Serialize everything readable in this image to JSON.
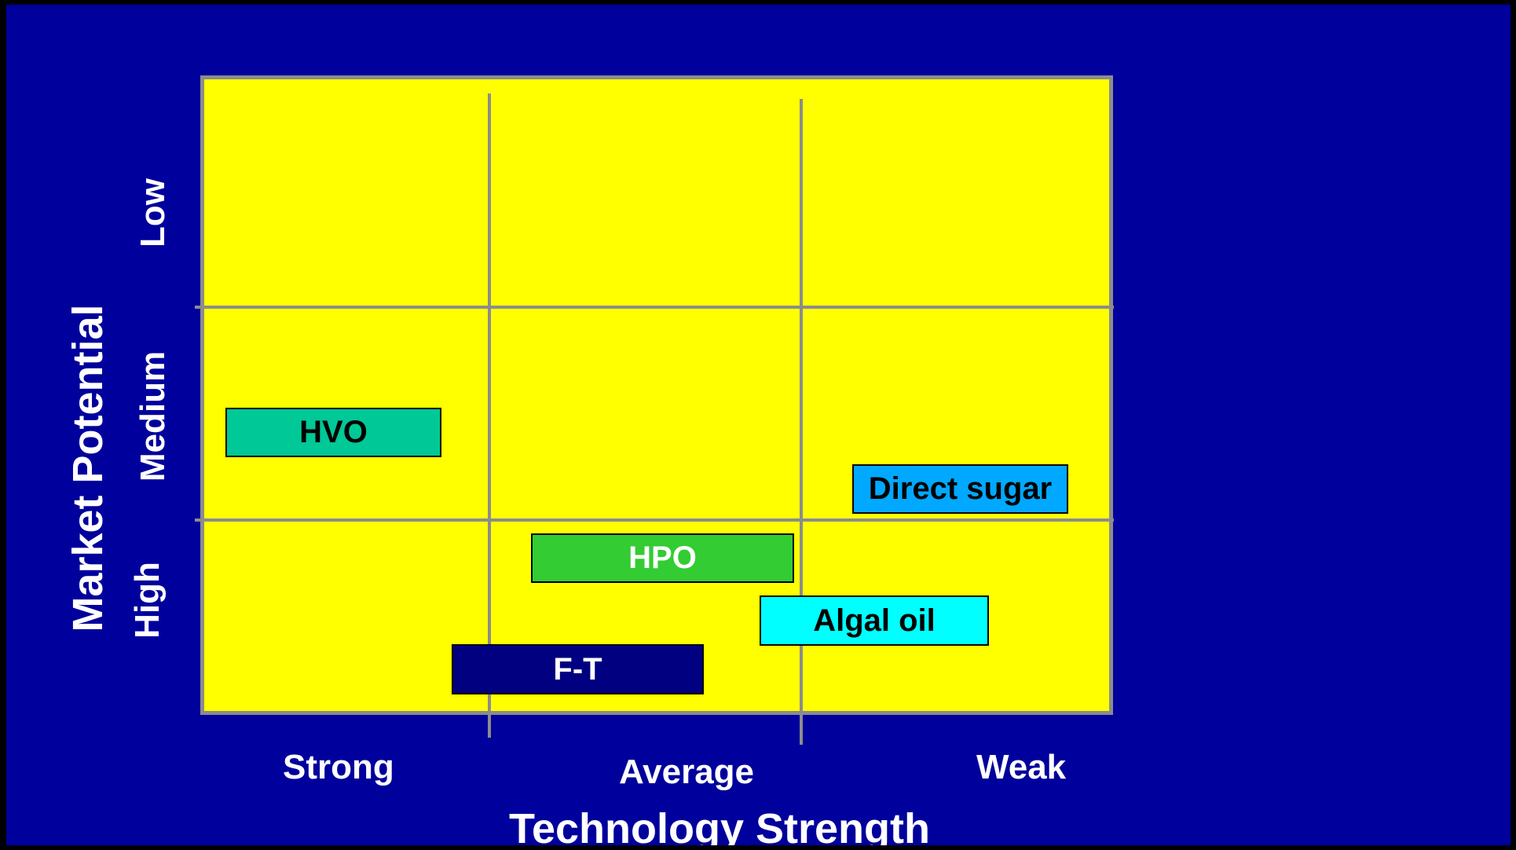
{
  "colors": {
    "slide_background": "#00009C",
    "grid_background": "#FFFF00",
    "grid_lines": "#8C8C8C",
    "label_text": "#FFFFFF"
  },
  "axes": {
    "x_title": "Technology Strength",
    "y_title": "Market Potential",
    "x_categories": [
      "Strong",
      "Average",
      "Weak"
    ],
    "y_categories": [
      "Low",
      "Medium",
      "High"
    ]
  },
  "items": [
    {
      "label": "HVO",
      "fill": "#00C896",
      "text_color": "#000000",
      "technology": "Strong",
      "market_potential": "Medium"
    },
    {
      "label": "Direct sugar",
      "fill": "#00A8FF",
      "text_color": "#000000",
      "technology": "Weak",
      "market_potential": "Medium"
    },
    {
      "label": "HPO",
      "fill": "#33CC33",
      "text_color": "#FFFFFF",
      "technology": "Average",
      "market_potential": "High"
    },
    {
      "label": "Algal oil",
      "fill": "#00FFFF",
      "text_color": "#000000",
      "technology": "Average–Weak",
      "market_potential": "High"
    },
    {
      "label": "F-T",
      "fill": "#000080",
      "text_color": "#FFFFFF",
      "technology": "Strong–Average",
      "market_potential": "High"
    }
  ]
}
